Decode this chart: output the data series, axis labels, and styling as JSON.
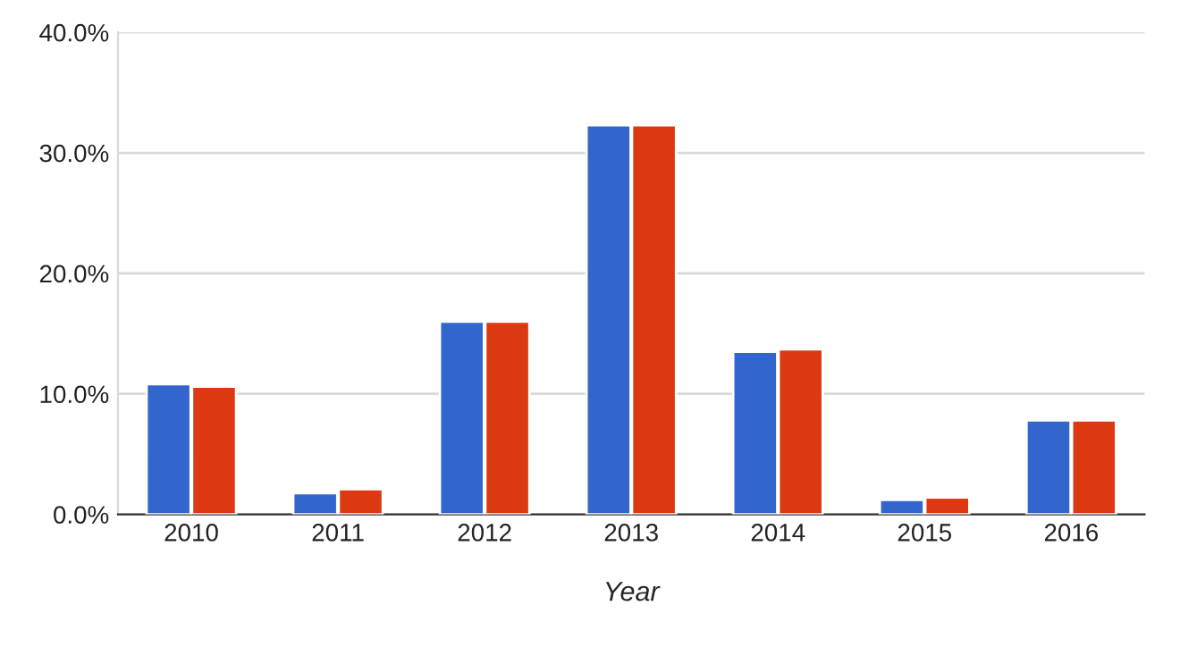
{
  "chart_data": {
    "type": "bar",
    "xlabel": "Year",
    "categories": [
      "2010",
      "2011",
      "2012",
      "2013",
      "2014",
      "2015",
      "2016"
    ],
    "series": [
      {
        "color": "#3366cc",
        "values": [
          10.8,
          1.75,
          16.0,
          32.3,
          13.5,
          1.2,
          7.8
        ]
      },
      {
        "color": "#dc3912",
        "values": [
          10.6,
          2.1,
          16.0,
          32.3,
          13.7,
          1.4,
          7.8
        ]
      }
    ],
    "ylim": [
      0,
      40
    ],
    "yticks": [
      {
        "value": 0,
        "label": "0.0%"
      },
      {
        "value": 10,
        "label": "10.0%"
      },
      {
        "value": 20,
        "label": "20.0%"
      },
      {
        "value": 30,
        "label": "30.0%"
      },
      {
        "value": 40,
        "label": "40.0%"
      }
    ],
    "grid": "y",
    "legend": false
  }
}
